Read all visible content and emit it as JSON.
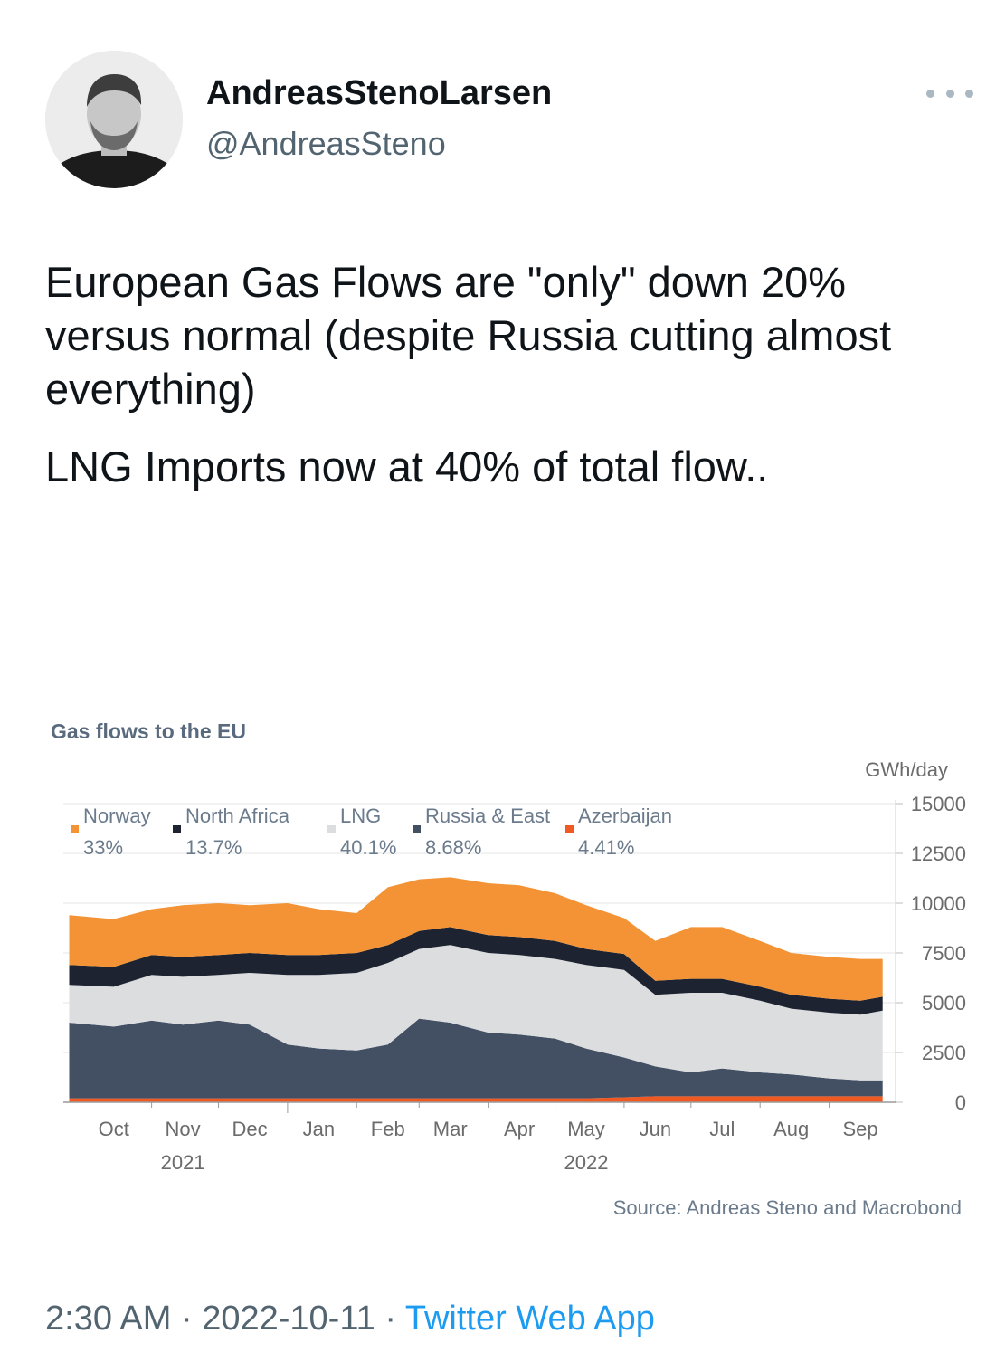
{
  "author": {
    "name": "AndreasStenoLarsen",
    "handle": "@AndreasSteno"
  },
  "tweet": {
    "paragraphs": [
      "European Gas Flows are \"only\" down 20% versus normal (despite Russia cutting almost everything)",
      "LNG Imports now at 40% of total flow.."
    ]
  },
  "footer": {
    "time": "2:30 AM",
    "separator": "·",
    "date": "2022-10-11",
    "source_app": "Twitter Web App"
  },
  "colors": {
    "norway": "#f39336",
    "north_africa": "#1d2330",
    "lng": "#dcdddf",
    "russia_east": "#435064",
    "azerbaijan": "#f05a22",
    "link": "#1d9bf0"
  },
  "chart_data": {
    "type": "area",
    "stacked": true,
    "title": "Gas flows to the EU",
    "unit_label": "GWh/day",
    "source": "Source: Andreas Steno and Macrobond",
    "ylim": [
      0,
      15000
    ],
    "y_ticks": [
      "0",
      "2500",
      "5000",
      "7500",
      "10000",
      "12500",
      "15000"
    ],
    "x_ticks": [
      "Oct",
      "Nov",
      "Dec",
      "Jan",
      "Feb",
      "Mar",
      "Apr",
      "May",
      "Jun",
      "Jul",
      "Aug",
      "Sep"
    ],
    "year_labels": [
      {
        "label": "2021",
        "at": "Nov"
      },
      {
        "label": "2022",
        "at": "May"
      }
    ],
    "legend_position": "top-left",
    "x": [
      "2021-09-25",
      "2021-10-15",
      "2021-11-01",
      "2021-11-15",
      "2021-12-01",
      "2021-12-15",
      "2022-01-01",
      "2022-01-15",
      "2022-02-01",
      "2022-02-15",
      "2022-03-01",
      "2022-03-15",
      "2022-04-01",
      "2022-04-15",
      "2022-05-01",
      "2022-05-15",
      "2022-06-01",
      "2022-06-15",
      "2022-07-01",
      "2022-07-15",
      "2022-08-01",
      "2022-08-15",
      "2022-09-01",
      "2022-09-15",
      "2022-09-25"
    ],
    "series": [
      {
        "name": "Azerbaijan",
        "share": "4.41%",
        "color": "#f05a22",
        "values": [
          200,
          200,
          200,
          200,
          200,
          200,
          200,
          200,
          200,
          200,
          200,
          200,
          200,
          200,
          200,
          200,
          250,
          300,
          300,
          300,
          300,
          300,
          300,
          300,
          300
        ]
      },
      {
        "name": "Russia & East",
        "share": "8.68%",
        "color": "#435064",
        "values": [
          3800,
          3600,
          3900,
          3700,
          3900,
          3700,
          2700,
          2500,
          2400,
          2700,
          4000,
          3800,
          3300,
          3200,
          3000,
          2500,
          2000,
          1500,
          1200,
          1400,
          1200,
          1100,
          900,
          800,
          800
        ]
      },
      {
        "name": "LNG",
        "share": "40.1%",
        "color": "#dcdddf",
        "values": [
          1900,
          2000,
          2300,
          2400,
          2300,
          2600,
          3500,
          3700,
          3900,
          4100,
          3500,
          3900,
          4000,
          4000,
          4000,
          4200,
          4400,
          3600,
          4000,
          3800,
          3600,
          3300,
          3300,
          3300,
          3500
        ]
      },
      {
        "name": "North Africa",
        "share": "13.7%",
        "color": "#1d2330",
        "values": [
          1000,
          1000,
          1000,
          1000,
          1000,
          1000,
          1000,
          1000,
          1000,
          900,
          900,
          900,
          900,
          900,
          900,
          800,
          800,
          700,
          700,
          700,
          700,
          700,
          700,
          700,
          700
        ]
      },
      {
        "name": "Norway",
        "share": "33%",
        "color": "#f39336",
        "values": [
          2500,
          2400,
          2300,
          2600,
          2600,
          2400,
          2600,
          2300,
          2000,
          2900,
          2600,
          2500,
          2600,
          2600,
          2400,
          2200,
          1800,
          2000,
          2600,
          2600,
          2300,
          2100,
          2100,
          2100,
          1900
        ]
      }
    ]
  }
}
